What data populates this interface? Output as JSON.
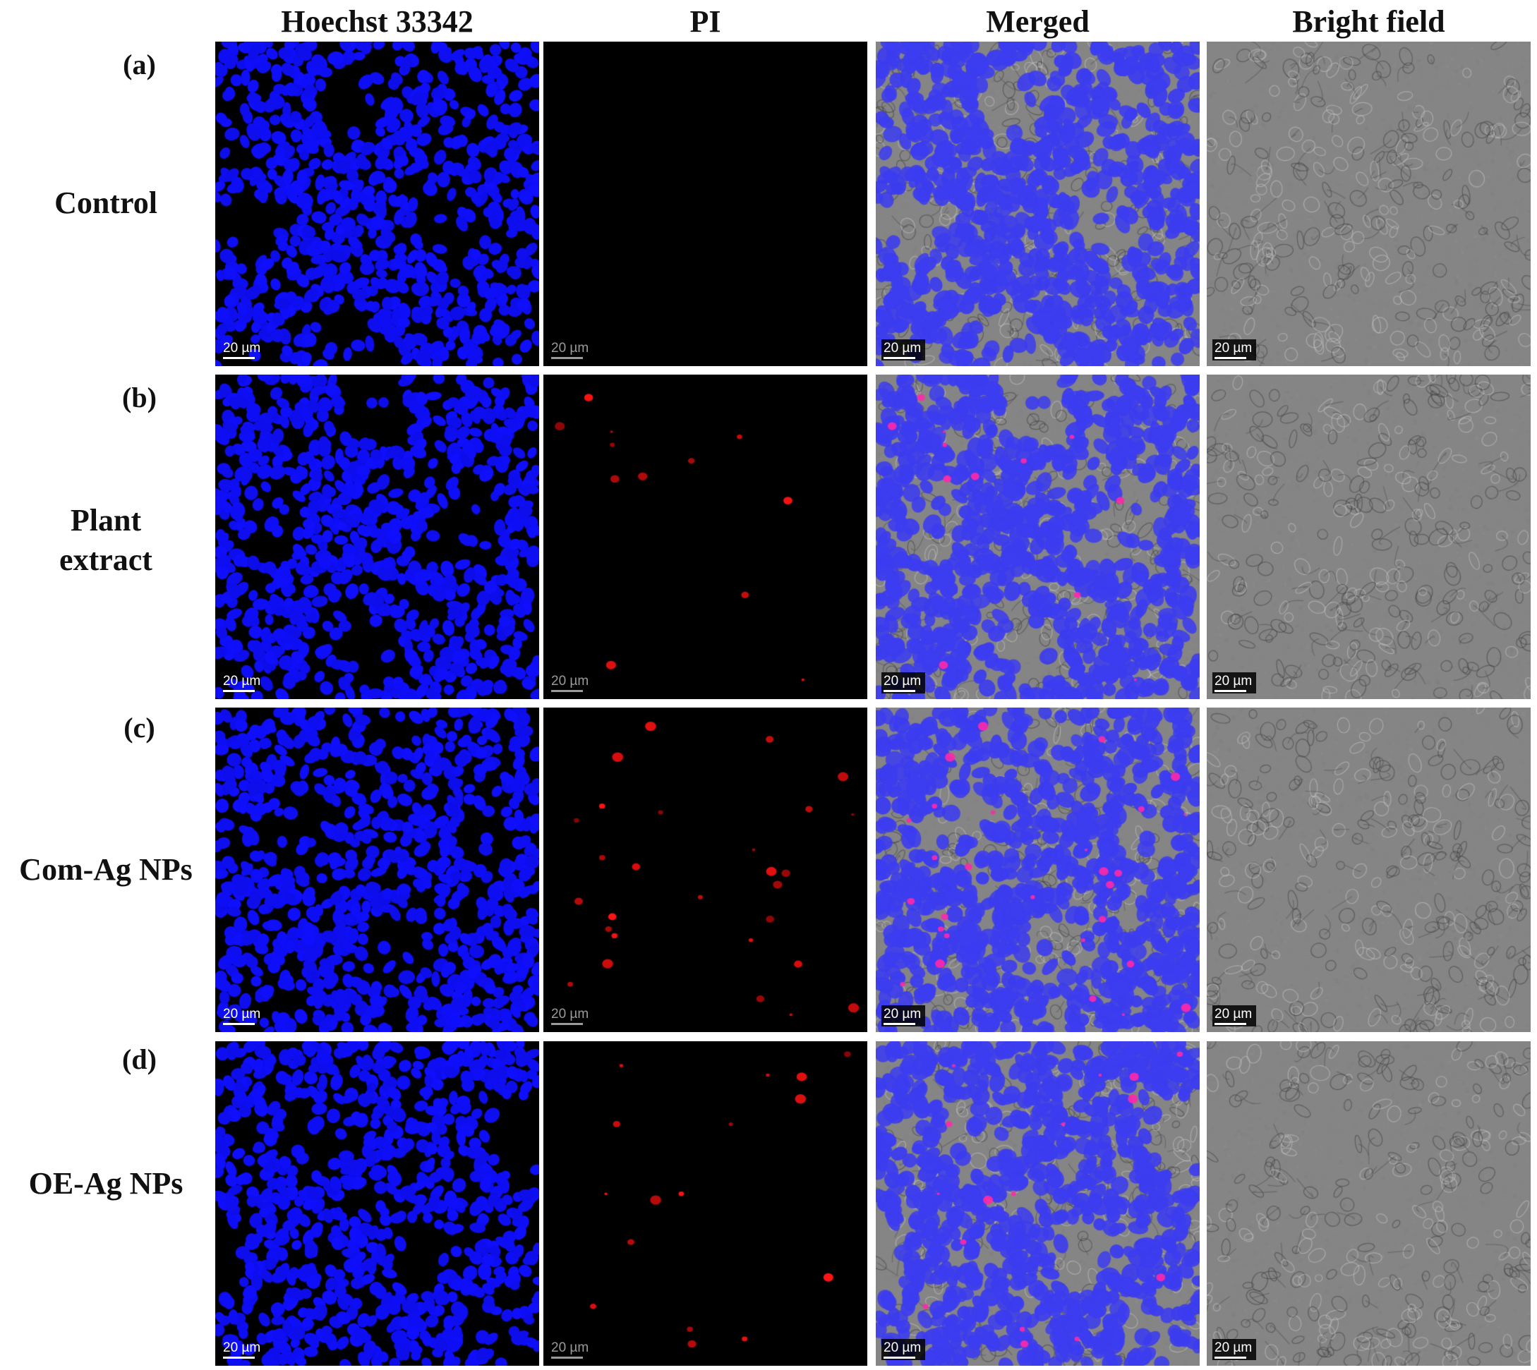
{
  "columns": [
    "Hoechst 33342",
    "PI",
    "Merged",
    "Bright field"
  ],
  "rows": [
    {
      "letter": "(a)",
      "name_line1": "Control",
      "name_line2": ""
    },
    {
      "letter": "(b)",
      "name_line1": "Plant",
      "name_line2": "extract"
    },
    {
      "letter": "(c)",
      "name_line1": "Com-Ag NPs",
      "name_line2": ""
    },
    {
      "letter": "(d)",
      "name_line1": "OE-Ag NPs",
      "name_line2": ""
    }
  ],
  "scale_bar_label": "20 µm",
  "pi_positive_cells": {
    "a": "none",
    "b": "few",
    "c": "many",
    "d": "some"
  },
  "colors": {
    "hoechst_blue": "#1a1aff",
    "pi_red": "#ff1a1a",
    "panel_background": "#000000",
    "brightfield_gray": "#8a8a8a"
  }
}
